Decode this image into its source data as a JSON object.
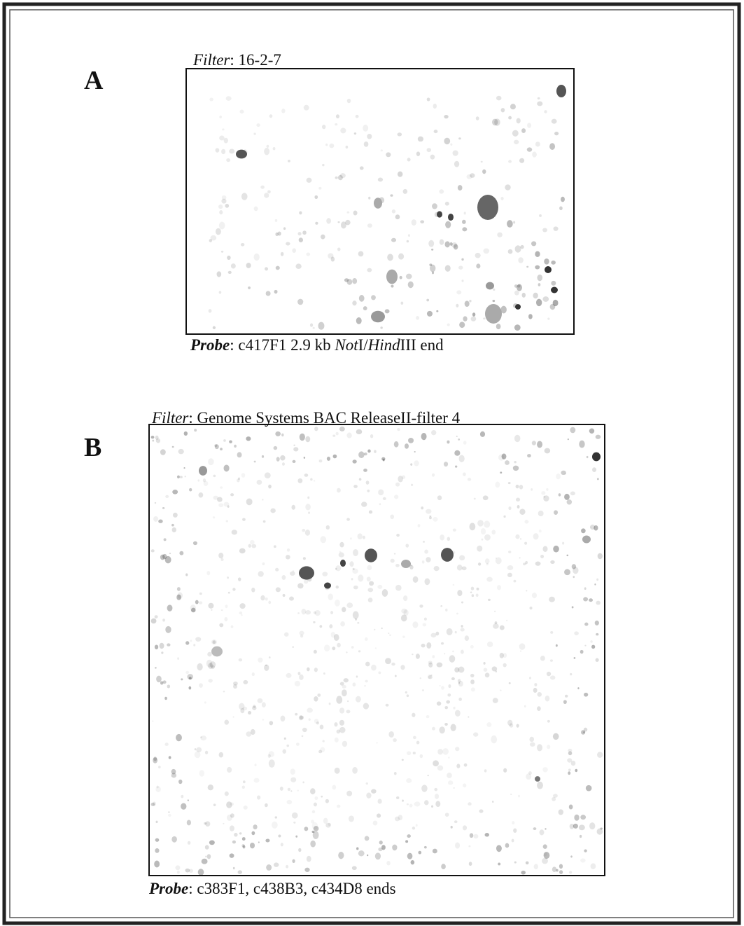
{
  "panels": [
    {
      "label": "A",
      "filter": {
        "key": "Filter",
        "text": ": 16-2-7"
      },
      "probe": {
        "key": "Probe",
        "parts": [
          ": c417F1 2.9 kb ",
          "Not",
          "I/",
          "Hind",
          "III end"
        ]
      }
    },
    {
      "label": "B",
      "filter": {
        "key": "Filter",
        "text": ": Genome Systems BAC ReleaseII-filter 4"
      },
      "probe": {
        "key": "Probe",
        "parts": [
          ": c383F1, c438B3, c434D8 ends"
        ]
      }
    }
  ]
}
